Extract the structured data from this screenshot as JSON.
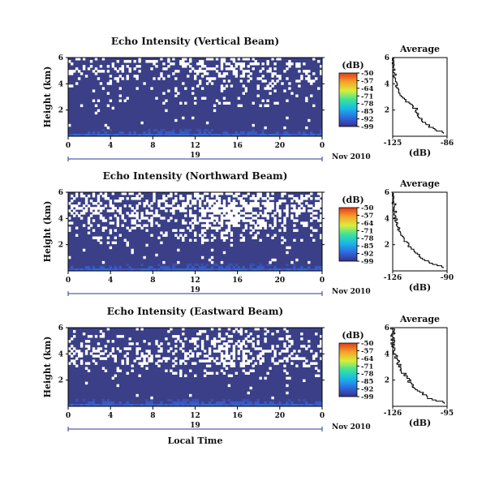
{
  "xlabel": "Local Time",
  "panels": [
    {
      "title": "Echo Intensity (Vertical Beam)",
      "ylabel": "Height (km)",
      "avg_title": "Average",
      "avg_xlabel": "(dB)",
      "date_label": "Nov 2010",
      "day_label": "19",
      "cb_label": "(dB)",
      "avg_xticks": [
        "-125",
        "-86"
      ]
    },
    {
      "title": "Echo Intensity (Northward Beam)",
      "ylabel": "Height (km)",
      "avg_title": "Average",
      "avg_xlabel": "(dB)",
      "date_label": "Nov 2010",
      "day_label": "19",
      "cb_label": "(dB)",
      "avg_xticks": [
        "-126",
        "-90"
      ]
    },
    {
      "title": "Echo Intensity (Eastward Beam)",
      "ylabel": "Height (km)",
      "avg_title": "Average",
      "avg_xlabel": "(dB)",
      "date_label": "Nov 2010",
      "day_label": "19",
      "cb_label": "(dB)",
      "avg_xticks": [
        "-126",
        "-95"
      ]
    }
  ],
  "xticks": [
    "0",
    "4",
    "8",
    "12",
    "16",
    "20",
    "0"
  ],
  "yticks": [
    "2",
    "4",
    "6"
  ],
  "cb_ticks": [
    "-50",
    "-57",
    "-64",
    "-71",
    "-78",
    "-85",
    "-92",
    "-99"
  ],
  "colors": {
    "background": "#3a3f88",
    "missing": "#ffffff",
    "scale": [
      "#3a2f8c",
      "#2d6be0",
      "#19b7e8",
      "#3be39a",
      "#d8ee3a",
      "#f6a22a",
      "#e23a1a"
    ]
  },
  "chart_data": [
    {
      "type": "heatmap",
      "title": "Echo Intensity (Vertical Beam)",
      "xlabel": "Local Time",
      "ylabel": "Height (km)",
      "xlim": [
        0,
        24
      ],
      "ylim": [
        0,
        6
      ],
      "colorbar_range_db": [
        -99,
        -50
      ],
      "description_values": "mostly near -99 dB with weak echo below 0.5 km; missing (white) gates mainly above 3 km",
      "average_profile": {
        "xlim": [
          -125,
          -86
        ],
        "ylim": [
          0,
          6
        ],
        "height_km": [
          0.2,
          0.5,
          1.0,
          1.5,
          2.0,
          2.5,
          3.0,
          4.0,
          5.0,
          6.0
        ],
        "db": [
          -88,
          -95,
          -103,
          -107,
          -108,
          -114,
          -120,
          -123,
          -124,
          -125
        ]
      }
    },
    {
      "type": "heatmap",
      "title": "Echo Intensity (Northward Beam)",
      "xlabel": "Local Time",
      "ylabel": "Height (km)",
      "xlim": [
        0,
        24
      ],
      "ylim": [
        0,
        6
      ],
      "colorbar_range_db": [
        -99,
        -50
      ],
      "average_profile": {
        "xlim": [
          -126,
          -90
        ],
        "ylim": [
          0,
          6
        ],
        "height_km": [
          0.2,
          0.5,
          1.0,
          1.5,
          2.0,
          2.5,
          3.0,
          4.0,
          5.0,
          6.0
        ],
        "db": [
          -92,
          -100,
          -108,
          -112,
          -116,
          -120,
          -122,
          -124,
          -125,
          -126
        ]
      }
    },
    {
      "type": "heatmap",
      "title": "Echo Intensity (Eastward Beam)",
      "xlabel": "Local Time",
      "ylabel": "Height (km)",
      "xlim": [
        0,
        24
      ],
      "ylim": [
        0,
        6
      ],
      "colorbar_range_db": [
        -99,
        -50
      ],
      "average_profile": {
        "xlim": [
          -126,
          -95
        ],
        "ylim": [
          0,
          6
        ],
        "height_km": [
          0.2,
          0.5,
          1.0,
          1.5,
          2.0,
          2.5,
          3.0,
          4.0,
          5.0,
          6.0
        ],
        "db": [
          -96,
          -104,
          -110,
          -115,
          -117,
          -120,
          -122,
          -125,
          -126,
          -126
        ]
      }
    }
  ]
}
